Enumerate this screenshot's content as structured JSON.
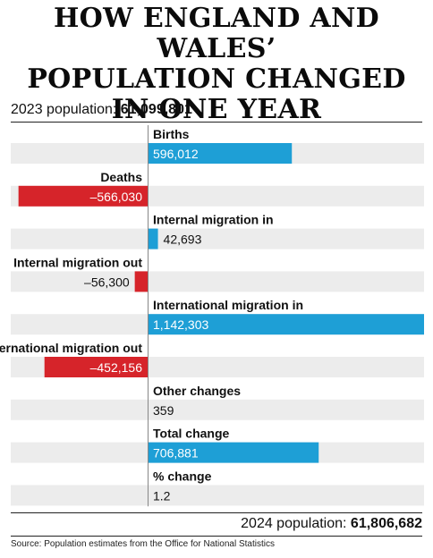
{
  "title_lines": [
    "HOW ENGLAND AND WALES’",
    "POPULATION CHANGED",
    "IN ONE YEAR"
  ],
  "start_population": {
    "label": "2023 population:",
    "value": "61,099,801"
  },
  "end_population": {
    "label": "2024 population:",
    "value": "61,806,682"
  },
  "source": "Source: Population estimates from the Office for National Statistics",
  "colors": {
    "positive": "#1e9fd6",
    "negative": "#d6242a",
    "band": "#ececec",
    "axis": "#888888"
  },
  "chart_data": {
    "type": "bar",
    "orientation": "horizontal",
    "categories": [
      "Births",
      "Deaths",
      "Internal migration in",
      "Internal migration out",
      "International migration in",
      "International migration out",
      "Other changes",
      "Total change",
      "% change"
    ],
    "values": [
      596012,
      -566030,
      42693,
      -56300,
      1142303,
      -452156,
      359,
      706881,
      1.2
    ],
    "value_labels": [
      "596,012",
      "–566,030",
      "42,693",
      "–56,300",
      "1,142,303",
      "–452,156",
      "359",
      "706,881",
      "1.2"
    ],
    "draw_bar": [
      true,
      true,
      true,
      true,
      true,
      true,
      false,
      true,
      false
    ],
    "xlim": [
      -600000,
      1142303
    ]
  }
}
